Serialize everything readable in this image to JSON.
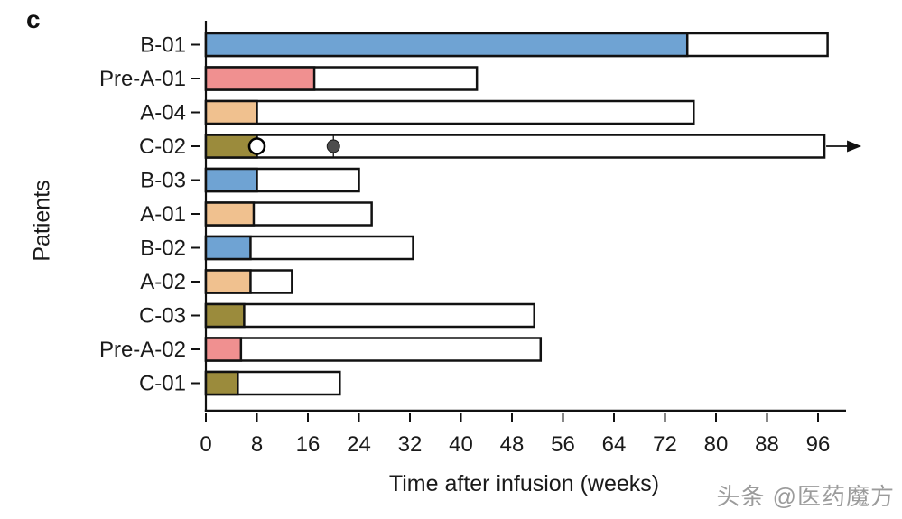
{
  "panel_label": "c",
  "watermark": "头条 @医药魔方",
  "colors": {
    "blue": "#6FA3D3",
    "pink": "#F09090",
    "tan": "#F0C18F",
    "olive": "#9B8B3C",
    "outline": "#111111",
    "marker_filled": "#4D4D4D",
    "marker_open_fill": "#FFFFFF"
  },
  "chart_data": {
    "type": "bar",
    "orientation": "horizontal",
    "title": "",
    "xlabel": "Time after infusion (weeks)",
    "ylabel": "Patients",
    "xlim": [
      0,
      100.5
    ],
    "x_ticks": [
      0,
      8,
      16,
      24,
      32,
      40,
      48,
      56,
      64,
      72,
      80,
      88,
      96
    ],
    "grid": false,
    "legend": "none",
    "categories": [
      "B-01",
      "Pre-A-01",
      "A-04",
      "C-02",
      "B-03",
      "A-01",
      "B-02",
      "A-02",
      "C-03",
      "Pre-A-02",
      "C-01"
    ],
    "rows": [
      {
        "patient": "B-01",
        "color": "blue",
        "colored_weeks": 75.5,
        "total_weeks": 97.5
      },
      {
        "patient": "Pre-A-01",
        "color": "pink",
        "colored_weeks": 17,
        "total_weeks": 42.5
      },
      {
        "patient": "A-04",
        "color": "tan",
        "colored_weeks": 8,
        "total_weeks": 76.5
      },
      {
        "patient": "C-02",
        "color": "olive",
        "colored_weeks": 8,
        "total_weeks": 97,
        "ongoing_arrow": true,
        "markers": [
          {
            "type": "open-circle",
            "week": 8
          },
          {
            "type": "filled-circle",
            "week": 20
          }
        ]
      },
      {
        "patient": "B-03",
        "color": "blue",
        "colored_weeks": 8,
        "total_weeks": 24
      },
      {
        "patient": "A-01",
        "color": "tan",
        "colored_weeks": 7.5,
        "total_weeks": 26
      },
      {
        "patient": "B-02",
        "color": "blue",
        "colored_weeks": 7,
        "total_weeks": 32.5
      },
      {
        "patient": "A-02",
        "color": "tan",
        "colored_weeks": 7,
        "total_weeks": 13.5
      },
      {
        "patient": "C-03",
        "color": "olive",
        "colored_weeks": 6,
        "total_weeks": 51.5
      },
      {
        "patient": "Pre-A-02",
        "color": "pink",
        "colored_weeks": 5.5,
        "total_weeks": 52.5
      },
      {
        "patient": "C-01",
        "color": "olive",
        "colored_weeks": 5,
        "total_weeks": 21
      }
    ]
  }
}
